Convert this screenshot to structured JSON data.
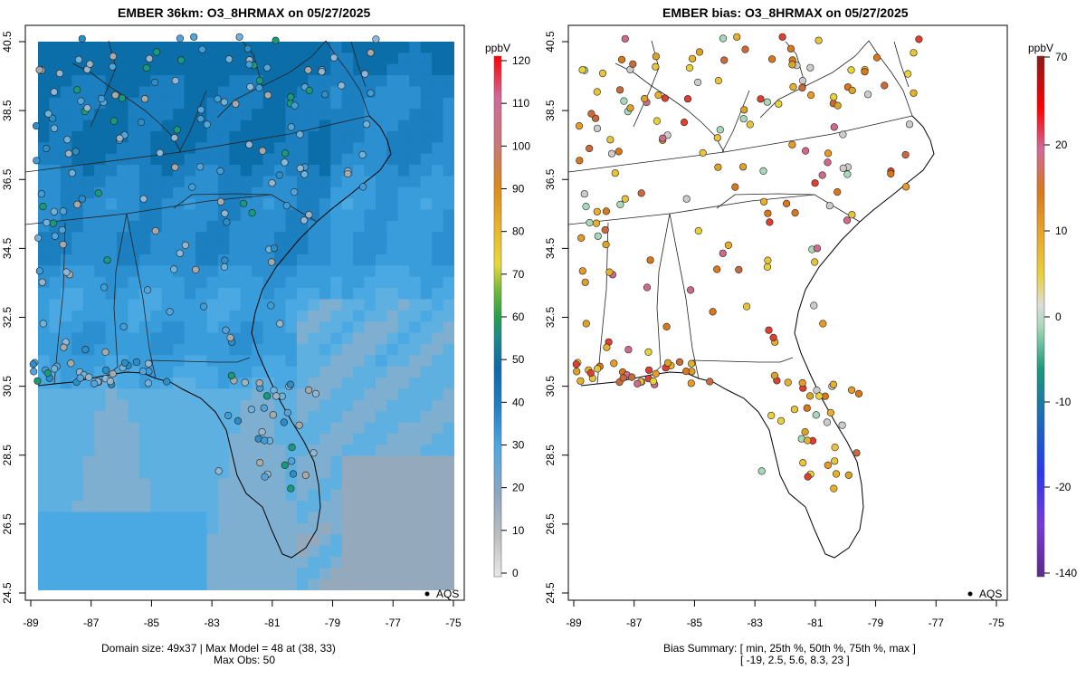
{
  "left_panel": {
    "title": "EMBER 36km: O3_8HRMAX on 05/27/2025",
    "colorbar_unit": "ppbV",
    "colorbar_ticks": [
      "0",
      "10",
      "20",
      "30",
      "40",
      "50",
      "60",
      "70",
      "80",
      "90",
      "100",
      "110",
      "120"
    ],
    "legend_label": "AQS",
    "footer_line1": "Domain size: 49x37 | Max Model = 48 at (38, 33)",
    "footer_line2": "Max Obs: 50"
  },
  "right_panel": {
    "title": "EMBER bias: O3_8HRMAX on 05/27/2025",
    "colorbar_unit": "ppbV",
    "colorbar_ticks": [
      "-140",
      "-20",
      "-10",
      "0",
      "10",
      "20",
      "70"
    ],
    "legend_label": "AQS",
    "footer_line1": "Bias Summary: [ min, 25th %, 50th %, 75th %, max ]",
    "footer_line2": "[ -19,   2.5,   5.6,   8.3,   23 ]"
  },
  "axes": {
    "x_ticks": [
      "-89",
      "-87",
      "-85",
      "-83",
      "-81",
      "-79",
      "-77",
      "-75"
    ],
    "y_ticks": [
      "24.5",
      "26.5",
      "28.5",
      "30.5",
      "32.5",
      "34.5",
      "36.5",
      "38.5",
      "40.5"
    ]
  },
  "chart_data": [
    {
      "type": "heatmap",
      "title": "EMBER 36km: O3_8HRMAX on 05/27/2025",
      "xlim": [
        -89.2,
        -74.7
      ],
      "ylim": [
        24.4,
        40.8
      ],
      "colorbar_range": [
        0,
        120
      ],
      "colorbar_unit": "ppbV",
      "grid_size": "49x37",
      "max_model": 48,
      "max_model_cell": [
        38,
        33
      ],
      "max_obs": 50
    },
    {
      "type": "scatter",
      "title": "EMBER bias: O3_8HRMAX on 05/27/2025",
      "xlim": [
        -89.2,
        -74.7
      ],
      "ylim": [
        24.4,
        40.8
      ],
      "colorbar_range": [
        -140,
        70
      ],
      "colorbar_unit": "ppbV",
      "bias_summary": {
        "min": -19,
        "p25": 2.5,
        "p50": 5.6,
        "p75": 8.3,
        "max": 23
      }
    }
  ],
  "colors": {
    "coast": "#000000",
    "model_low": "#9fb6c8",
    "model_mid": "#4aa6e0",
    "model_high": "#1f78b4"
  }
}
